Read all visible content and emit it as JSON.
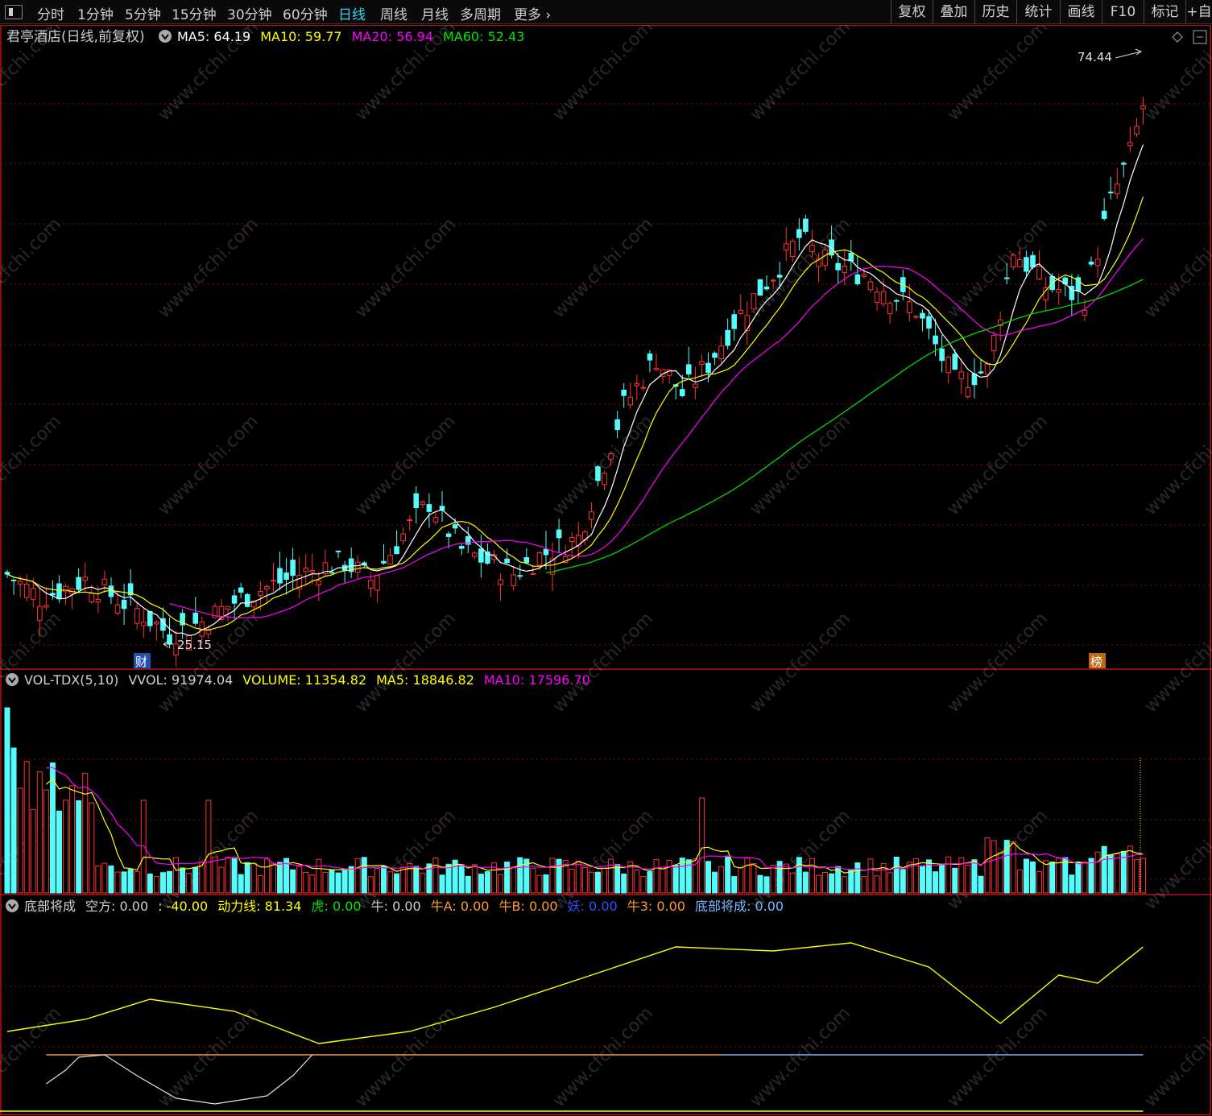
{
  "toolbar": {
    "left_tabs": [
      {
        "label": "分时",
        "x": 46
      },
      {
        "label": "1分钟",
        "x": 96
      },
      {
        "label": "5分钟",
        "x": 155
      },
      {
        "label": "15分钟",
        "x": 213
      },
      {
        "label": "30分钟",
        "x": 282
      },
      {
        "label": "60分钟",
        "x": 351
      },
      {
        "label": "日线",
        "x": 420,
        "active": true
      },
      {
        "label": "周线",
        "x": 472
      },
      {
        "label": "月线",
        "x": 523
      },
      {
        "label": "多周期",
        "x": 571
      },
      {
        "label": "更多",
        "x": 638
      }
    ],
    "right_buttons": [
      {
        "label": "复权",
        "x": 1106,
        "w": 52
      },
      {
        "label": "叠加",
        "x": 1158,
        "w": 52
      },
      {
        "label": "历史",
        "x": 1210,
        "w": 52
      },
      {
        "label": "统计",
        "x": 1262,
        "w": 54
      },
      {
        "label": "画线",
        "x": 1316,
        "w": 52
      },
      {
        "label": "F10",
        "x": 1368,
        "w": 52
      },
      {
        "label": "标记",
        "x": 1420,
        "w": 52
      },
      {
        "label": "+自",
        "x": 1472,
        "w": 33
      }
    ]
  },
  "colors": {
    "up": "#ff3232",
    "down": "#54fcfc",
    "ma5": "#ffffff",
    "ma10": "#ffff00",
    "ma20": "#ff00ff",
    "ma60": "#00e600",
    "grid": "#7a1010",
    "frame": "#b01818"
  },
  "price_panel": {
    "title": "君亭酒店(日线,前复权)",
    "legend": [
      {
        "label": "MA5: 64.19",
        "color": "#ffffff"
      },
      {
        "label": "MA10: 59.77",
        "color": "#ffff00"
      },
      {
        "label": "MA20: 56.94",
        "color": "#ff00ff"
      },
      {
        "label": "MA60: 52.43",
        "color": "#00e600"
      }
    ],
    "high_label": "74.44",
    "low_label": "25.15",
    "badge_left": "财",
    "badge_right": "榜"
  },
  "volume_panel": {
    "legend": [
      {
        "label": "VOL-TDX(5,10)",
        "color": "#d0d0d0"
      },
      {
        "label": "VVOL: 91974.04",
        "color": "#d0d0d0"
      },
      {
        "label": "VOLUME: 11354.82",
        "color": "#ffff00"
      },
      {
        "label": "MA5: 18846.82",
        "color": "#ffff00"
      },
      {
        "label": "MA10: 17596.70",
        "color": "#ff00ff"
      }
    ]
  },
  "indicator_panel": {
    "legend": [
      {
        "label": "底部将成",
        "color": "#d0d0d0"
      },
      {
        "label": "空方: 0.00",
        "color": "#d0d0d0"
      },
      {
        "label": ": -40.00",
        "color": "#ffff00"
      },
      {
        "label": "动力线: 81.34",
        "color": "#ffff00"
      },
      {
        "label": "虎: 0.00",
        "color": "#00e600"
      },
      {
        "label": "牛: 0.00",
        "color": "#d0d0d0"
      },
      {
        "label": "牛A: 0.00",
        "color": "#ff9933"
      },
      {
        "label": "牛B: 0.00",
        "color": "#ff9933"
      },
      {
        "label": "妖: 0.00",
        "color": "#3050ff"
      },
      {
        "label": "牛3: 0.00",
        "color": "#ff9933"
      },
      {
        "label": "底部将成: 0.00",
        "color": "#7ab8ff"
      }
    ]
  },
  "chart_data": {
    "type": "candlestick",
    "series_count": 176,
    "price_extremes": {
      "high": 74.44,
      "low": 25.15
    },
    "ma_last": {
      "ma5": 64.19,
      "ma10": 59.77,
      "ma20": 56.94,
      "ma60": 52.43
    },
    "volume_last": {
      "vvol": 91974.04,
      "volume": 11354.82,
      "ma5": 18846.82,
      "ma10": 17596.7
    },
    "indicator_last": {
      "kongfang": 0.0,
      "line": -40.0,
      "dongli": 81.34
    }
  }
}
